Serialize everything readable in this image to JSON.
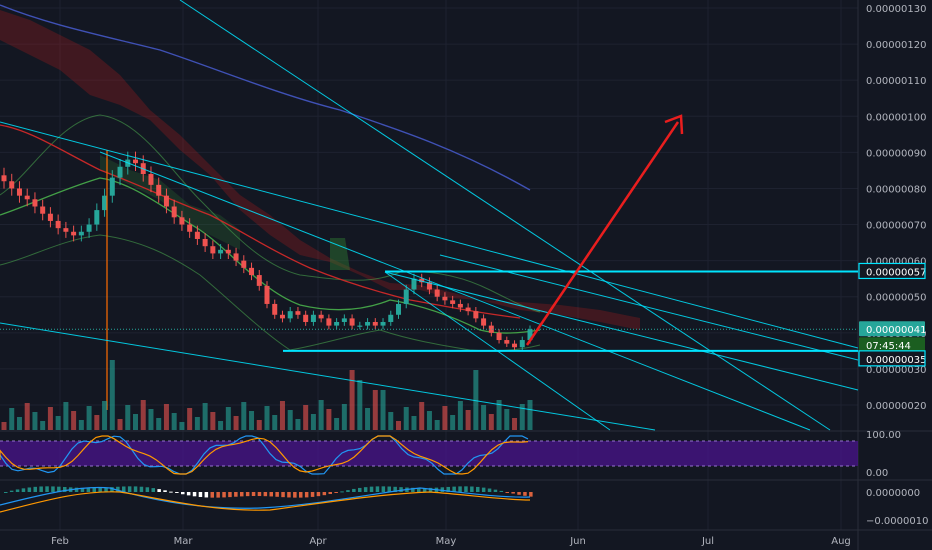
{
  "chart_data": [
    {
      "type": "candlestick",
      "title": "",
      "ylabel": "",
      "xlabel": "",
      "yscale": "log",
      "y_ticks": [
        "0.00000130",
        "0.00000120",
        "0.00000110",
        "0.00000100",
        "0.00000090",
        "0.00000080",
        "0.00000070",
        "0.00000060",
        "0.00000050",
        "0.00000040",
        "0.00000030",
        "0.00000020"
      ],
      "x_ticks": [
        "Feb",
        "Mar",
        "Apr",
        "May",
        "Jun",
        "Jul",
        "Aug"
      ],
      "ylim": [
        1.6e-07,
        1.36e-06
      ],
      "price_labels": [
        {
          "value": "0.00000057",
          "color": "#00e5ff"
        },
        {
          "value": "0.00000041",
          "color": "#26a69a"
        },
        {
          "value": "07:45:44",
          "color": "#26a69a"
        },
        {
          "value": "0.00000035",
          "color": "#00e5ff"
        }
      ],
      "horizontal_levels": [
        5.7e-07,
        3.5e-07
      ],
      "last_price": 4.1e-07,
      "countdown": "07:45:44",
      "candles_close": [
        8.2e-07,
        8e-07,
        7.8e-07,
        7.7e-07,
        7.5e-07,
        7.3e-07,
        7.1e-07,
        6.9e-07,
        6.8e-07,
        6.7e-07,
        6.8e-07,
        7e-07,
        7.4e-07,
        7.8e-07,
        8.3e-07,
        8.6e-07,
        8.8e-07,
        8.7e-07,
        8.4e-07,
        8.1e-07,
        7.8e-07,
        7.5e-07,
        7.2e-07,
        7e-07,
        6.8e-07,
        6.6e-07,
        6.4e-07,
        6.2e-07,
        6.3e-07,
        6.2e-07,
        6e-07,
        5.8e-07,
        5.6e-07,
        5.3e-07,
        4.8e-07,
        4.5e-07,
        4.4e-07,
        4.6e-07,
        4.5e-07,
        4.3e-07,
        4.5e-07,
        4.4e-07,
        4.2e-07,
        4.3e-07,
        4.4e-07,
        4.2e-07,
        4.2e-07,
        4.3e-07,
        4.2e-07,
        4.3e-07,
        4.5e-07,
        4.8e-07,
        5.2e-07,
        5.5e-07,
        5.4e-07,
        5.2e-07,
        5e-07,
        4.9e-07,
        4.8e-07,
        4.7e-07,
        4.6e-07,
        4.4e-07,
        4.2e-07,
        4e-07,
        3.8e-07,
        3.7e-07,
        3.6e-07,
        3.8e-07,
        4.1e-07
      ],
      "stoch_rsi": {
        "upper": 100.0,
        "lower": 0.0,
        "tick_labels": [
          "100.00",
          "0.00"
        ]
      },
      "macd": {
        "tick_labels": [
          "0.0000000",
          "−0.0000010"
        ]
      },
      "colors": {
        "up": "#26a69a",
        "down": "#ef5350",
        "cyan": "#00e5ff",
        "arrow": "#e91e1e",
        "ma200": "#3f51b5",
        "ma50": "#c62828",
        "ma20": "#43a047",
        "stoch_band": "#4a148c"
      }
    }
  ]
}
